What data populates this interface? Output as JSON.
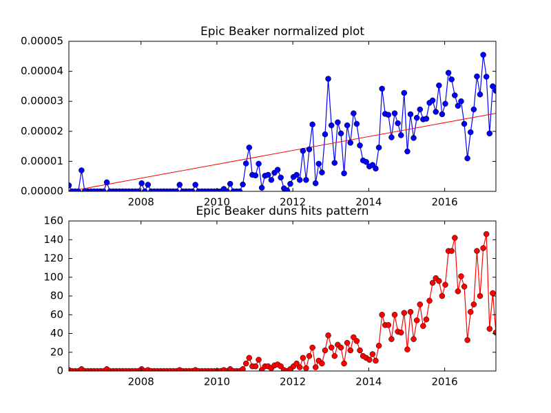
{
  "chart_data": [
    {
      "type": "line",
      "title": "Epic Beaker normalized plot",
      "x": [
        2006.1,
        2006.183,
        2006.267,
        2006.35,
        2006.433,
        2006.517,
        2006.6,
        2006.683,
        2006.767,
        2006.85,
        2006.933,
        2007.017,
        2007.1,
        2007.183,
        2007.267,
        2007.35,
        2007.433,
        2007.517,
        2007.6,
        2007.683,
        2007.767,
        2007.85,
        2007.933,
        2008.017,
        2008.1,
        2008.183,
        2008.267,
        2008.35,
        2008.433,
        2008.517,
        2008.6,
        2008.683,
        2008.767,
        2008.85,
        2008.933,
        2009.017,
        2009.1,
        2009.183,
        2009.267,
        2009.35,
        2009.433,
        2009.517,
        2009.6,
        2009.683,
        2009.767,
        2009.85,
        2009.933,
        2010.017,
        2010.1,
        2010.183,
        2010.267,
        2010.35,
        2010.433,
        2010.517,
        2010.6,
        2010.683,
        2010.767,
        2010.85,
        2010.933,
        2011.017,
        2011.1,
        2011.183,
        2011.267,
        2011.35,
        2011.433,
        2011.517,
        2011.6,
        2011.683,
        2011.767,
        2011.85,
        2011.933,
        2012.017,
        2012.1,
        2012.183,
        2012.267,
        2012.35,
        2012.433,
        2012.517,
        2012.6,
        2012.683,
        2012.767,
        2012.85,
        2012.933,
        2013.017,
        2013.1,
        2013.183,
        2013.267,
        2013.35,
        2013.433,
        2013.517,
        2013.6,
        2013.683,
        2013.767,
        2013.85,
        2013.933,
        2014.017,
        2014.1,
        2014.183,
        2014.267,
        2014.35,
        2014.433,
        2014.517,
        2014.6,
        2014.683,
        2014.767,
        2014.85,
        2014.933,
        2015.017,
        2015.1,
        2015.183,
        2015.267,
        2015.35,
        2015.433,
        2015.517,
        2015.6,
        2015.683,
        2015.767,
        2015.85,
        2015.933,
        2016.017,
        2016.1,
        2016.183,
        2016.267,
        2016.35,
        2016.433,
        2016.517,
        2016.6,
        2016.683,
        2016.767,
        2016.85,
        2016.933,
        2017.017,
        2017.1,
        2017.183,
        2017.267,
        2017.35
      ],
      "values": [
        2e-06,
        0,
        0,
        0,
        7e-06,
        0,
        0,
        0,
        0,
        0,
        0,
        0,
        3e-06,
        0,
        0,
        0,
        0,
        0,
        0,
        0,
        0,
        0,
        0,
        2.7e-06,
        0,
        2.2e-06,
        0,
        0,
        0,
        0,
        0,
        0,
        0,
        0,
        0,
        2.2e-06,
        0,
        0,
        0,
        0,
        2.2e-06,
        0,
        0,
        0,
        0,
        0,
        0,
        0,
        0,
        8e-07,
        0,
        2.5e-06,
        0,
        0,
        0,
        2.3e-06,
        9.3e-06,
        1.46e-05,
        5.5e-06,
        5.3e-06,
        9.2e-06,
        1.2e-06,
        5.2e-06,
        5.5e-06,
        3.8e-06,
        6.2e-06,
        7.2e-06,
        4.6e-06,
        1e-06,
        3e-07,
        2.5e-06,
        4.8e-06,
        5.5e-06,
        3.8e-06,
        1.35e-05,
        3.8e-06,
        1.4e-05,
        2.23e-05,
        2.7e-06,
        9.2e-06,
        6.3e-06,
        1.9e-05,
        3.75e-05,
        2.2e-05,
        9.5e-06,
        2.3e-05,
        1.93e-05,
        6e-06,
        2.2e-05,
        1.62e-05,
        2.6e-05,
        2.25e-05,
        1.53e-05,
        1.03e-05,
        9.8e-06,
        8.3e-06,
        8.8e-06,
        7.6e-06,
        1.46e-05,
        3.42e-05,
        2.58e-05,
        2.55e-05,
        1.8e-05,
        2.6e-05,
        2.27e-05,
        1.87e-05,
        3.28e-05,
        1.33e-05,
        2.57e-05,
        1.78e-05,
        2.45e-05,
        2.73e-05,
        2.4e-05,
        2.42e-05,
        2.95e-05,
        3.03e-05,
        2.65e-05,
        3.53e-05,
        2.57e-05,
        2.92e-05,
        3.95e-05,
        3.73e-05,
        3.2e-05,
        2.85e-05,
        3e-05,
        2.25e-05,
        1.1e-05,
        1.97e-05,
        2.73e-05,
        3.83e-05,
        3.23e-05,
        4.55e-05,
        3.82e-05,
        1.93e-05,
        3.5e-05,
        3.35e-05
      ],
      "color": "#0000ff",
      "trend_line": {
        "x": [
          2006.1,
          2017.35
        ],
        "values": [
          0,
          2.6e-05
        ],
        "color": "#ff0000"
      },
      "xlim": [
        2006.1,
        2017.35
      ],
      "xticks": [
        2008,
        2010,
        2012,
        2014,
        2016
      ],
      "ylim": [
        0,
        5e-05
      ],
      "yticks": [
        {
          "value": 0,
          "label": "0.00000"
        },
        {
          "value": 1e-05,
          "label": "0.00001"
        },
        {
          "value": 2e-05,
          "label": "0.00002"
        },
        {
          "value": 3e-05,
          "label": "0.00003"
        },
        {
          "value": 4e-05,
          "label": "0.00004"
        },
        {
          "value": 5e-05,
          "label": "0.00005"
        }
      ]
    },
    {
      "type": "line",
      "title": "Epic Beaker duns hits pattern",
      "x": [
        2006.1,
        2006.183,
        2006.267,
        2006.35,
        2006.433,
        2006.517,
        2006.6,
        2006.683,
        2006.767,
        2006.85,
        2006.933,
        2007.017,
        2007.1,
        2007.183,
        2007.267,
        2007.35,
        2007.433,
        2007.517,
        2007.6,
        2007.683,
        2007.767,
        2007.85,
        2007.933,
        2008.017,
        2008.1,
        2008.183,
        2008.267,
        2008.35,
        2008.433,
        2008.517,
        2008.6,
        2008.683,
        2008.767,
        2008.85,
        2008.933,
        2009.017,
        2009.1,
        2009.183,
        2009.267,
        2009.35,
        2009.433,
        2009.517,
        2009.6,
        2009.683,
        2009.767,
        2009.85,
        2009.933,
        2010.017,
        2010.1,
        2010.183,
        2010.267,
        2010.35,
        2010.433,
        2010.517,
        2010.6,
        2010.683,
        2010.767,
        2010.85,
        2010.933,
        2011.017,
        2011.1,
        2011.183,
        2011.267,
        2011.35,
        2011.433,
        2011.517,
        2011.6,
        2011.683,
        2011.767,
        2011.85,
        2011.933,
        2012.017,
        2012.1,
        2012.183,
        2012.267,
        2012.35,
        2012.433,
        2012.517,
        2012.6,
        2012.683,
        2012.767,
        2012.85,
        2012.933,
        2013.017,
        2013.1,
        2013.183,
        2013.267,
        2013.35,
        2013.433,
        2013.517,
        2013.6,
        2013.683,
        2013.767,
        2013.85,
        2013.933,
        2014.017,
        2014.1,
        2014.183,
        2014.267,
        2014.35,
        2014.433,
        2014.517,
        2014.6,
        2014.683,
        2014.767,
        2014.85,
        2014.933,
        2015.017,
        2015.1,
        2015.183,
        2015.267,
        2015.35,
        2015.433,
        2015.517,
        2015.6,
        2015.683,
        2015.767,
        2015.85,
        2015.933,
        2016.017,
        2016.1,
        2016.183,
        2016.267,
        2016.35,
        2016.433,
        2016.517,
        2016.6,
        2016.683,
        2016.767,
        2016.85,
        2016.933,
        2017.017,
        2017.1,
        2017.183,
        2017.267,
        2017.35
      ],
      "values": [
        1,
        0,
        0,
        0,
        2,
        0,
        0,
        0,
        0,
        0,
        0,
        0,
        2,
        0,
        0,
        0,
        0,
        0,
        0,
        0,
        0,
        0,
        0,
        2,
        0,
        1,
        0,
        0,
        0,
        0,
        0,
        0,
        0,
        0,
        0,
        1,
        0,
        0,
        0,
        0,
        1,
        0,
        0,
        0,
        0,
        0,
        0,
        0,
        0,
        1,
        0,
        2,
        0,
        0,
        0,
        2,
        8,
        14,
        5,
        5,
        12,
        1,
        5,
        5,
        3,
        6,
        7,
        5,
        1,
        0,
        2,
        5,
        8,
        4,
        14,
        3,
        16,
        25,
        4,
        11,
        8,
        22,
        38,
        25,
        16,
        28,
        25,
        8,
        30,
        22,
        36,
        32,
        22,
        16,
        14,
        12,
        18,
        11,
        27,
        60,
        49,
        49,
        34,
        60,
        42,
        41,
        62,
        23,
        63,
        34,
        54,
        71,
        48,
        55,
        75,
        94,
        99,
        96,
        80,
        92,
        128,
        128,
        142,
        85,
        101,
        90,
        33,
        63,
        71,
        128,
        80,
        131,
        146,
        45,
        83,
        41
      ],
      "color": "#ff0000",
      "xlim": [
        2006.1,
        2017.35
      ],
      "xticks": [
        2008,
        2010,
        2012,
        2014,
        2016
      ],
      "ylim": [
        0,
        160
      ],
      "yticks": [
        0,
        20,
        40,
        60,
        80,
        100,
        120,
        140,
        160
      ]
    }
  ]
}
